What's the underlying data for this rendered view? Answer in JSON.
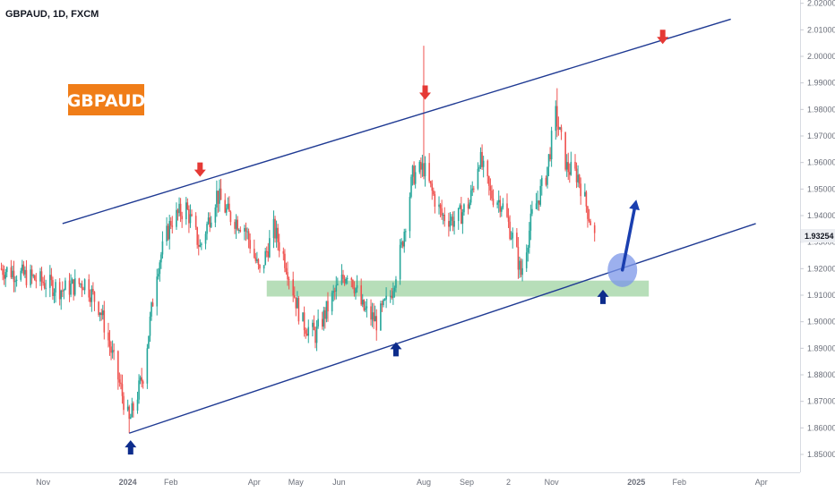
{
  "header": {
    "symbol_line": "GBPAUD, 1D, FXCM"
  },
  "badge": {
    "label": "GBPAUD",
    "color": "#f07d18"
  },
  "current_price": {
    "label": "1.93254"
  },
  "colors": {
    "up": "#26a69a",
    "down": "#ef5350",
    "channel": "#1f3a93",
    "support_zone": "#a5d6a7",
    "arrow_down": "#e53935",
    "arrow_up": "#0d2c8c",
    "circle": "#7b96e8",
    "projection": "#1a3fb0"
  },
  "chart_data": {
    "type": "candlestick",
    "title": "GBPAUD, 1D, FXCM",
    "ylim": [
      1.845,
      2.025
    ],
    "y_ticks": [
      "2.02000",
      "2.01000",
      "2.00000",
      "1.99000",
      "1.98000",
      "1.97000",
      "1.96000",
      "1.95000",
      "1.94000",
      "1.93000",
      "1.92000",
      "1.91000",
      "1.90000",
      "1.89000",
      "1.88000",
      "1.87000",
      "1.86000",
      "1.85000"
    ],
    "x_ticks": [
      "Nov",
      "2024",
      "Feb",
      "Apr",
      "May",
      "Jun",
      "Aug",
      "Sep",
      "2",
      "Nov",
      "2025",
      "Feb",
      "Apr"
    ],
    "x_tick_dates": [
      "2023-11-01",
      "2024-01-01",
      "2024-02-01",
      "2024-04-01",
      "2024-05-01",
      "2024-06-01",
      "2024-08-01",
      "2024-09-01",
      "2024-10-01",
      "2024-11-01",
      "2025-01-01",
      "2025-02-01",
      "2025-04-01"
    ],
    "close_path": [
      [
        "2023-10-01",
        1.92
      ],
      [
        "2023-10-15",
        1.918
      ],
      [
        "2023-11-01",
        1.915
      ],
      [
        "2023-11-15",
        1.912
      ],
      [
        "2023-12-01",
        1.915
      ],
      [
        "2023-12-12",
        1.905
      ],
      [
        "2023-12-22",
        1.885
      ],
      [
        "2024-01-02",
        1.862
      ],
      [
        "2024-01-12",
        1.88
      ],
      [
        "2024-01-22",
        1.92
      ],
      [
        "2024-02-01",
        1.938
      ],
      [
        "2024-02-12",
        1.943
      ],
      [
        "2024-02-22",
        1.928
      ],
      [
        "2024-03-05",
        1.948
      ],
      [
        "2024-03-14",
        1.94
      ],
      [
        "2024-03-25",
        1.936
      ],
      [
        "2024-04-05",
        1.918
      ],
      [
        "2024-04-15",
        1.935
      ],
      [
        "2024-04-24",
        1.922
      ],
      [
        "2024-05-05",
        1.9
      ],
      [
        "2024-05-15",
        1.895
      ],
      [
        "2024-05-28",
        1.91
      ],
      [
        "2024-06-08",
        1.92
      ],
      [
        "2024-06-18",
        1.905
      ],
      [
        "2024-06-28",
        1.9
      ],
      [
        "2024-07-08",
        1.91
      ],
      [
        "2024-07-16",
        1.928
      ],
      [
        "2024-07-24",
        1.955
      ],
      [
        "2024-08-01",
        1.958
      ],
      [
        "2024-08-06",
        1.95
      ],
      [
        "2024-08-14",
        1.94
      ],
      [
        "2024-08-24",
        1.938
      ],
      [
        "2024-09-03",
        1.945
      ],
      [
        "2024-09-10",
        1.962
      ],
      [
        "2024-09-18",
        1.948
      ],
      [
        "2024-09-26",
        1.945
      ],
      [
        "2024-10-05",
        1.93
      ],
      [
        "2024-10-10",
        1.918
      ],
      [
        "2024-10-18",
        1.94
      ],
      [
        "2024-10-28",
        1.955
      ],
      [
        "2024-11-04",
        1.978
      ],
      [
        "2024-11-12",
        1.958
      ],
      [
        "2024-11-20",
        1.955
      ],
      [
        "2024-11-28",
        1.94
      ],
      [
        "2024-12-02",
        1.932
      ]
    ],
    "annotations": {
      "channel_upper": [
        [
          "2023-11-15",
          1.937
        ],
        [
          "2025-03-10",
          2.014
        ]
      ],
      "channel_lower": [
        [
          "2024-01-02",
          1.858
        ],
        [
          "2025-03-28",
          1.937
        ]
      ],
      "support_zone": {
        "from": "2024-04-10",
        "to": "2025-01-10",
        "y_top": 1.9155,
        "y_bottom": 1.9095
      },
      "down_arrows": [
        [
          "2024-02-22",
          1.957
        ],
        [
          "2024-08-02",
          1.986
        ],
        [
          "2025-01-20",
          2.007
        ]
      ],
      "up_arrows": [
        [
          "2024-01-03",
          1.853
        ],
        [
          "2024-07-12",
          1.89
        ],
        [
          "2024-12-08",
          1.9097
        ]
      ],
      "circle": [
        "2024-12-22",
        1.9195
      ],
      "projection_arrow": [
        [
          "2024-12-22",
          1.9195
        ],
        [
          "2025-01-01",
          1.946
        ]
      ]
    }
  }
}
